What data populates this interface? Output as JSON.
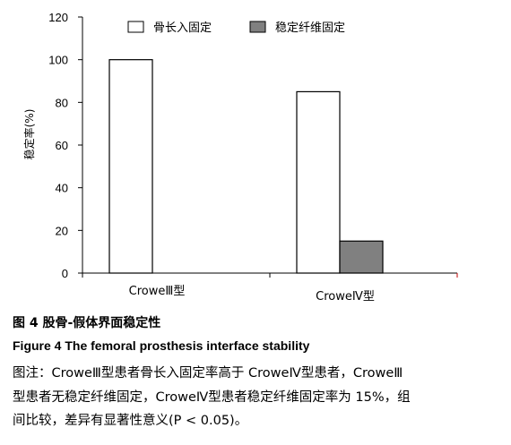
{
  "chart_data": {
    "type": "bar",
    "categories": [
      "CroweⅢ型",
      "CroweⅣ型"
    ],
    "series": [
      {
        "name": "骨长入固定",
        "values": [
          100,
          85
        ],
        "color": "#ffffff"
      },
      {
        "name": "稳定纤维固定",
        "values": [
          0,
          15
        ],
        "color": "#808080"
      }
    ],
    "ylabel": "稳定率(%)",
    "ylim": [
      0,
      120
    ],
    "yticks": [
      0,
      20,
      40,
      60,
      80,
      100,
      120
    ],
    "legend_position": "top",
    "grid": false
  },
  "figure": {
    "title_cn": "图 4   股骨-假体界面稳定性",
    "title_en": "Figure 4    The femoral prosthesis interface stability",
    "note_lines": [
      "图注：CroweⅢ型患者骨长入固定率高于 CroweⅣ型患者，CroweⅢ",
      "型患者无稳定纤维固定，CroweⅣ型患者稳定纤维固定率为 15%，组",
      "间比较，差异有显著性意义(P < 0.05)。"
    ]
  }
}
